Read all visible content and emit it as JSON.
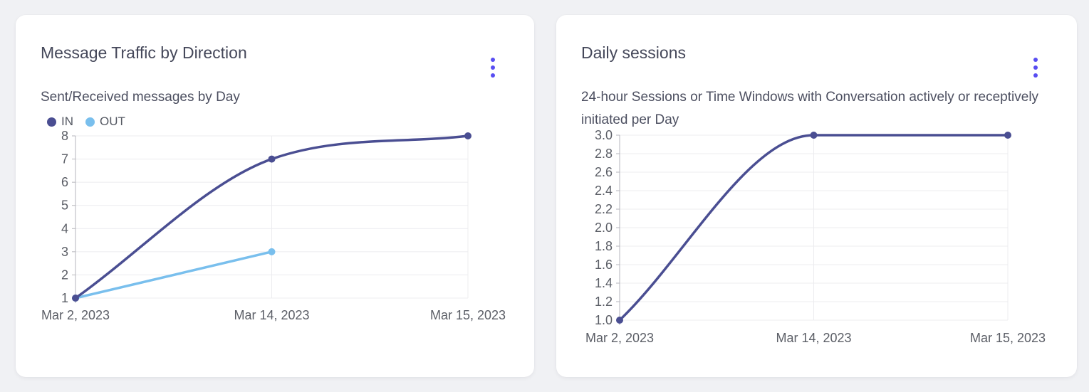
{
  "theme": {
    "menu_dot_color": "#584df2",
    "grid_color": "#ececef",
    "axis_color": "#b6b6bc",
    "tick_label_color": "#5b5e66",
    "card_background": "#ffffff",
    "page_background": "#f0f1f4"
  },
  "chart_data": [
    {
      "type": "line",
      "title": "Message Traffic by Direction",
      "subtitle": "Sent/Received messages by Day",
      "categories": [
        "Mar 2, 2023",
        "Mar 14, 2023",
        "Mar 15, 2023"
      ],
      "y_ticks": [
        "8",
        "7",
        "6",
        "5",
        "4",
        "3",
        "2",
        "1"
      ],
      "ylim": [
        1,
        8
      ],
      "grid": true,
      "legend_position": "top-left",
      "series": [
        {
          "name": "IN",
          "color": "#4a4e92",
          "values": [
            1,
            7,
            8
          ],
          "smooth": true
        },
        {
          "name": "OUT",
          "color": "#79bfed",
          "values": [
            1,
            3,
            null
          ],
          "smooth": false
        }
      ]
    },
    {
      "type": "line",
      "title": "Daily sessions",
      "subtitle": "24-hour Sessions or Time Windows with Conversation actively or receptively initiated per Day",
      "categories": [
        "Mar 2, 2023",
        "Mar 14, 2023",
        "Mar 15, 2023"
      ],
      "y_ticks": [
        "3.0",
        "2.8",
        "2.6",
        "2.4",
        "2.2",
        "2.0",
        "1.8",
        "1.6",
        "1.4",
        "1.2",
        "1.0"
      ],
      "ylim": [
        1,
        3
      ],
      "grid": true,
      "legend_position": "none",
      "series": [
        {
          "name": "",
          "color": "#4a4e92",
          "values": [
            1,
            3,
            3
          ],
          "smooth": true
        }
      ]
    }
  ]
}
